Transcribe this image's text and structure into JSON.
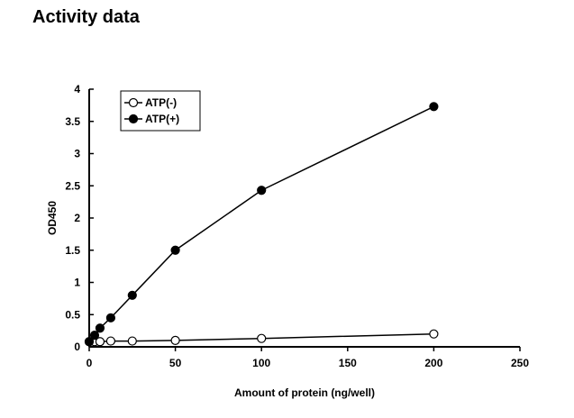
{
  "page_title": "Activity data",
  "chart_data": {
    "type": "line",
    "title": "",
    "xlabel": "Amount of protein (ng/well)",
    "ylabel": "OD450",
    "xlim": [
      0,
      250
    ],
    "ylim": [
      0,
      4
    ],
    "xticks": [
      0,
      50,
      100,
      150,
      200,
      250
    ],
    "yticks": [
      0,
      0.5,
      1,
      1.5,
      2,
      2.5,
      3,
      3.5,
      4
    ],
    "legend": "top-left",
    "grid": false,
    "series": [
      {
        "name": "ATP(-)",
        "marker": "open-circle",
        "x": [
          0,
          3.125,
          6.25,
          12.5,
          25,
          50,
          100,
          200
        ],
        "y": [
          0.08,
          0.08,
          0.08,
          0.09,
          0.09,
          0.1,
          0.13,
          0.2
        ]
      },
      {
        "name": "ATP(+)",
        "marker": "filled-circle",
        "x": [
          0,
          3.125,
          6.25,
          12.5,
          25,
          50,
          100,
          200
        ],
        "y": [
          0.08,
          0.18,
          0.29,
          0.45,
          0.8,
          1.5,
          2.43,
          3.73
        ]
      }
    ]
  }
}
